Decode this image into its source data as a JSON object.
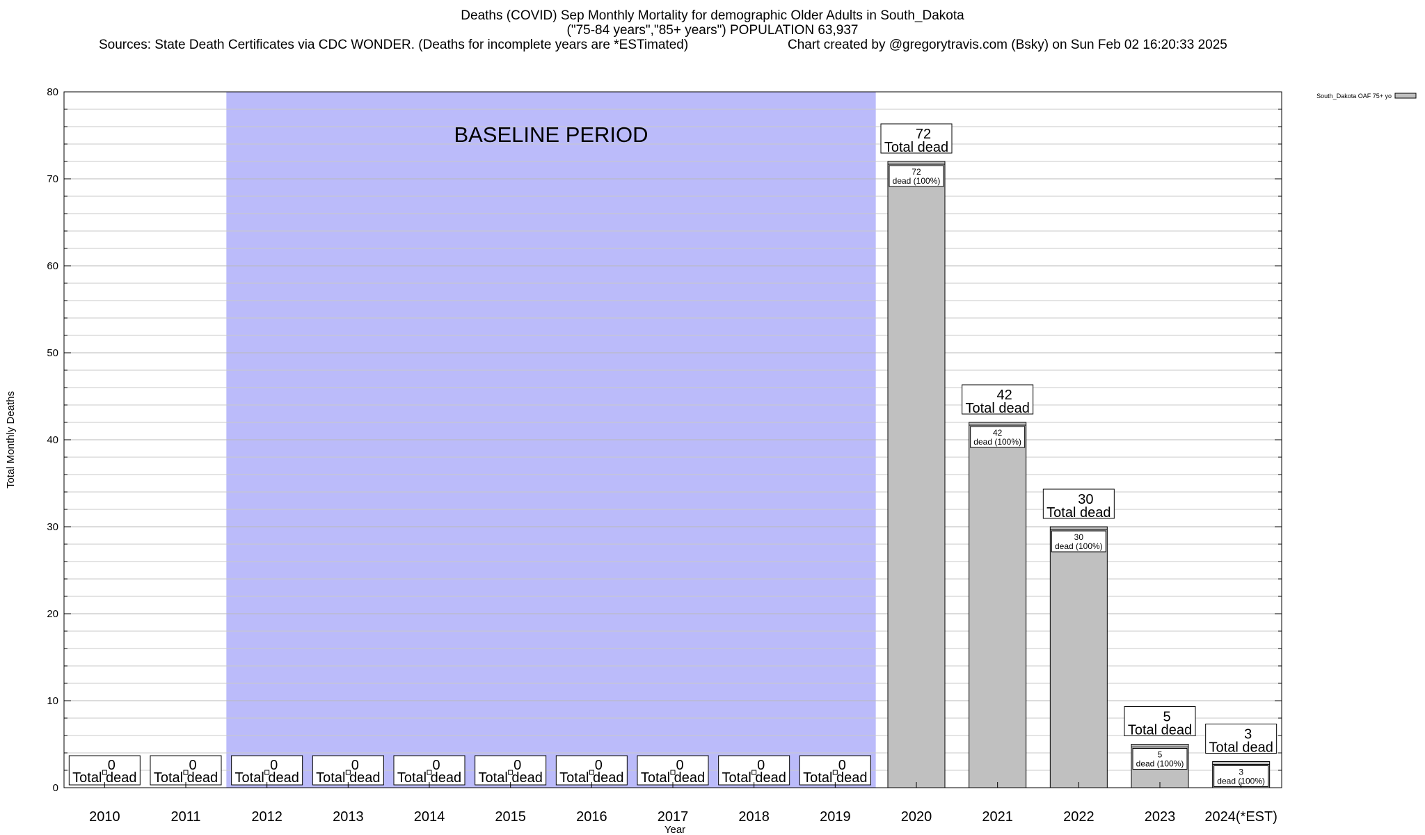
{
  "title": {
    "line1": "Deaths (COVID) Sep Monthly Mortality for demographic Older Adults in South_Dakota",
    "line2": "(\"75-84 years\",\"85+ years\") POPULATION 63,937",
    "sources": "Sources: State Death Certificates via CDC WONDER. (Deaths for incomplete years are *ESTimated)",
    "credit": "Chart created by @gregorytravis.com (Bsky) on Sun Feb 02 16:20:33 2025"
  },
  "chart_data": {
    "type": "bar",
    "categories": [
      "2010",
      "2011",
      "2012",
      "2013",
      "2014",
      "2015",
      "2016",
      "2017",
      "2018",
      "2019",
      "2020",
      "2021",
      "2022",
      "2023",
      "2024(*EST)"
    ],
    "series": [
      {
        "name": "South_Dakota OAF 75+ yo",
        "values": [
          0,
          0,
          0,
          0,
          0,
          0,
          0,
          0,
          0,
          0,
          72,
          42,
          30,
          5,
          3
        ],
        "color": "#c0c0c0"
      }
    ],
    "total_label": "Total dead",
    "inner_label_suffix": "dead (100%)",
    "xlabel": "Year",
    "ylabel": "Total Monthly Deaths",
    "ylim": [
      0,
      80
    ],
    "yticks": [
      0,
      10,
      20,
      30,
      40,
      50,
      60,
      70,
      80
    ],
    "grid": true,
    "legend_position": "top-right",
    "baseline": {
      "label": "BASELINE PERIOD",
      "from": "2012",
      "to": "2019",
      "color": "#bbbbfa"
    }
  }
}
